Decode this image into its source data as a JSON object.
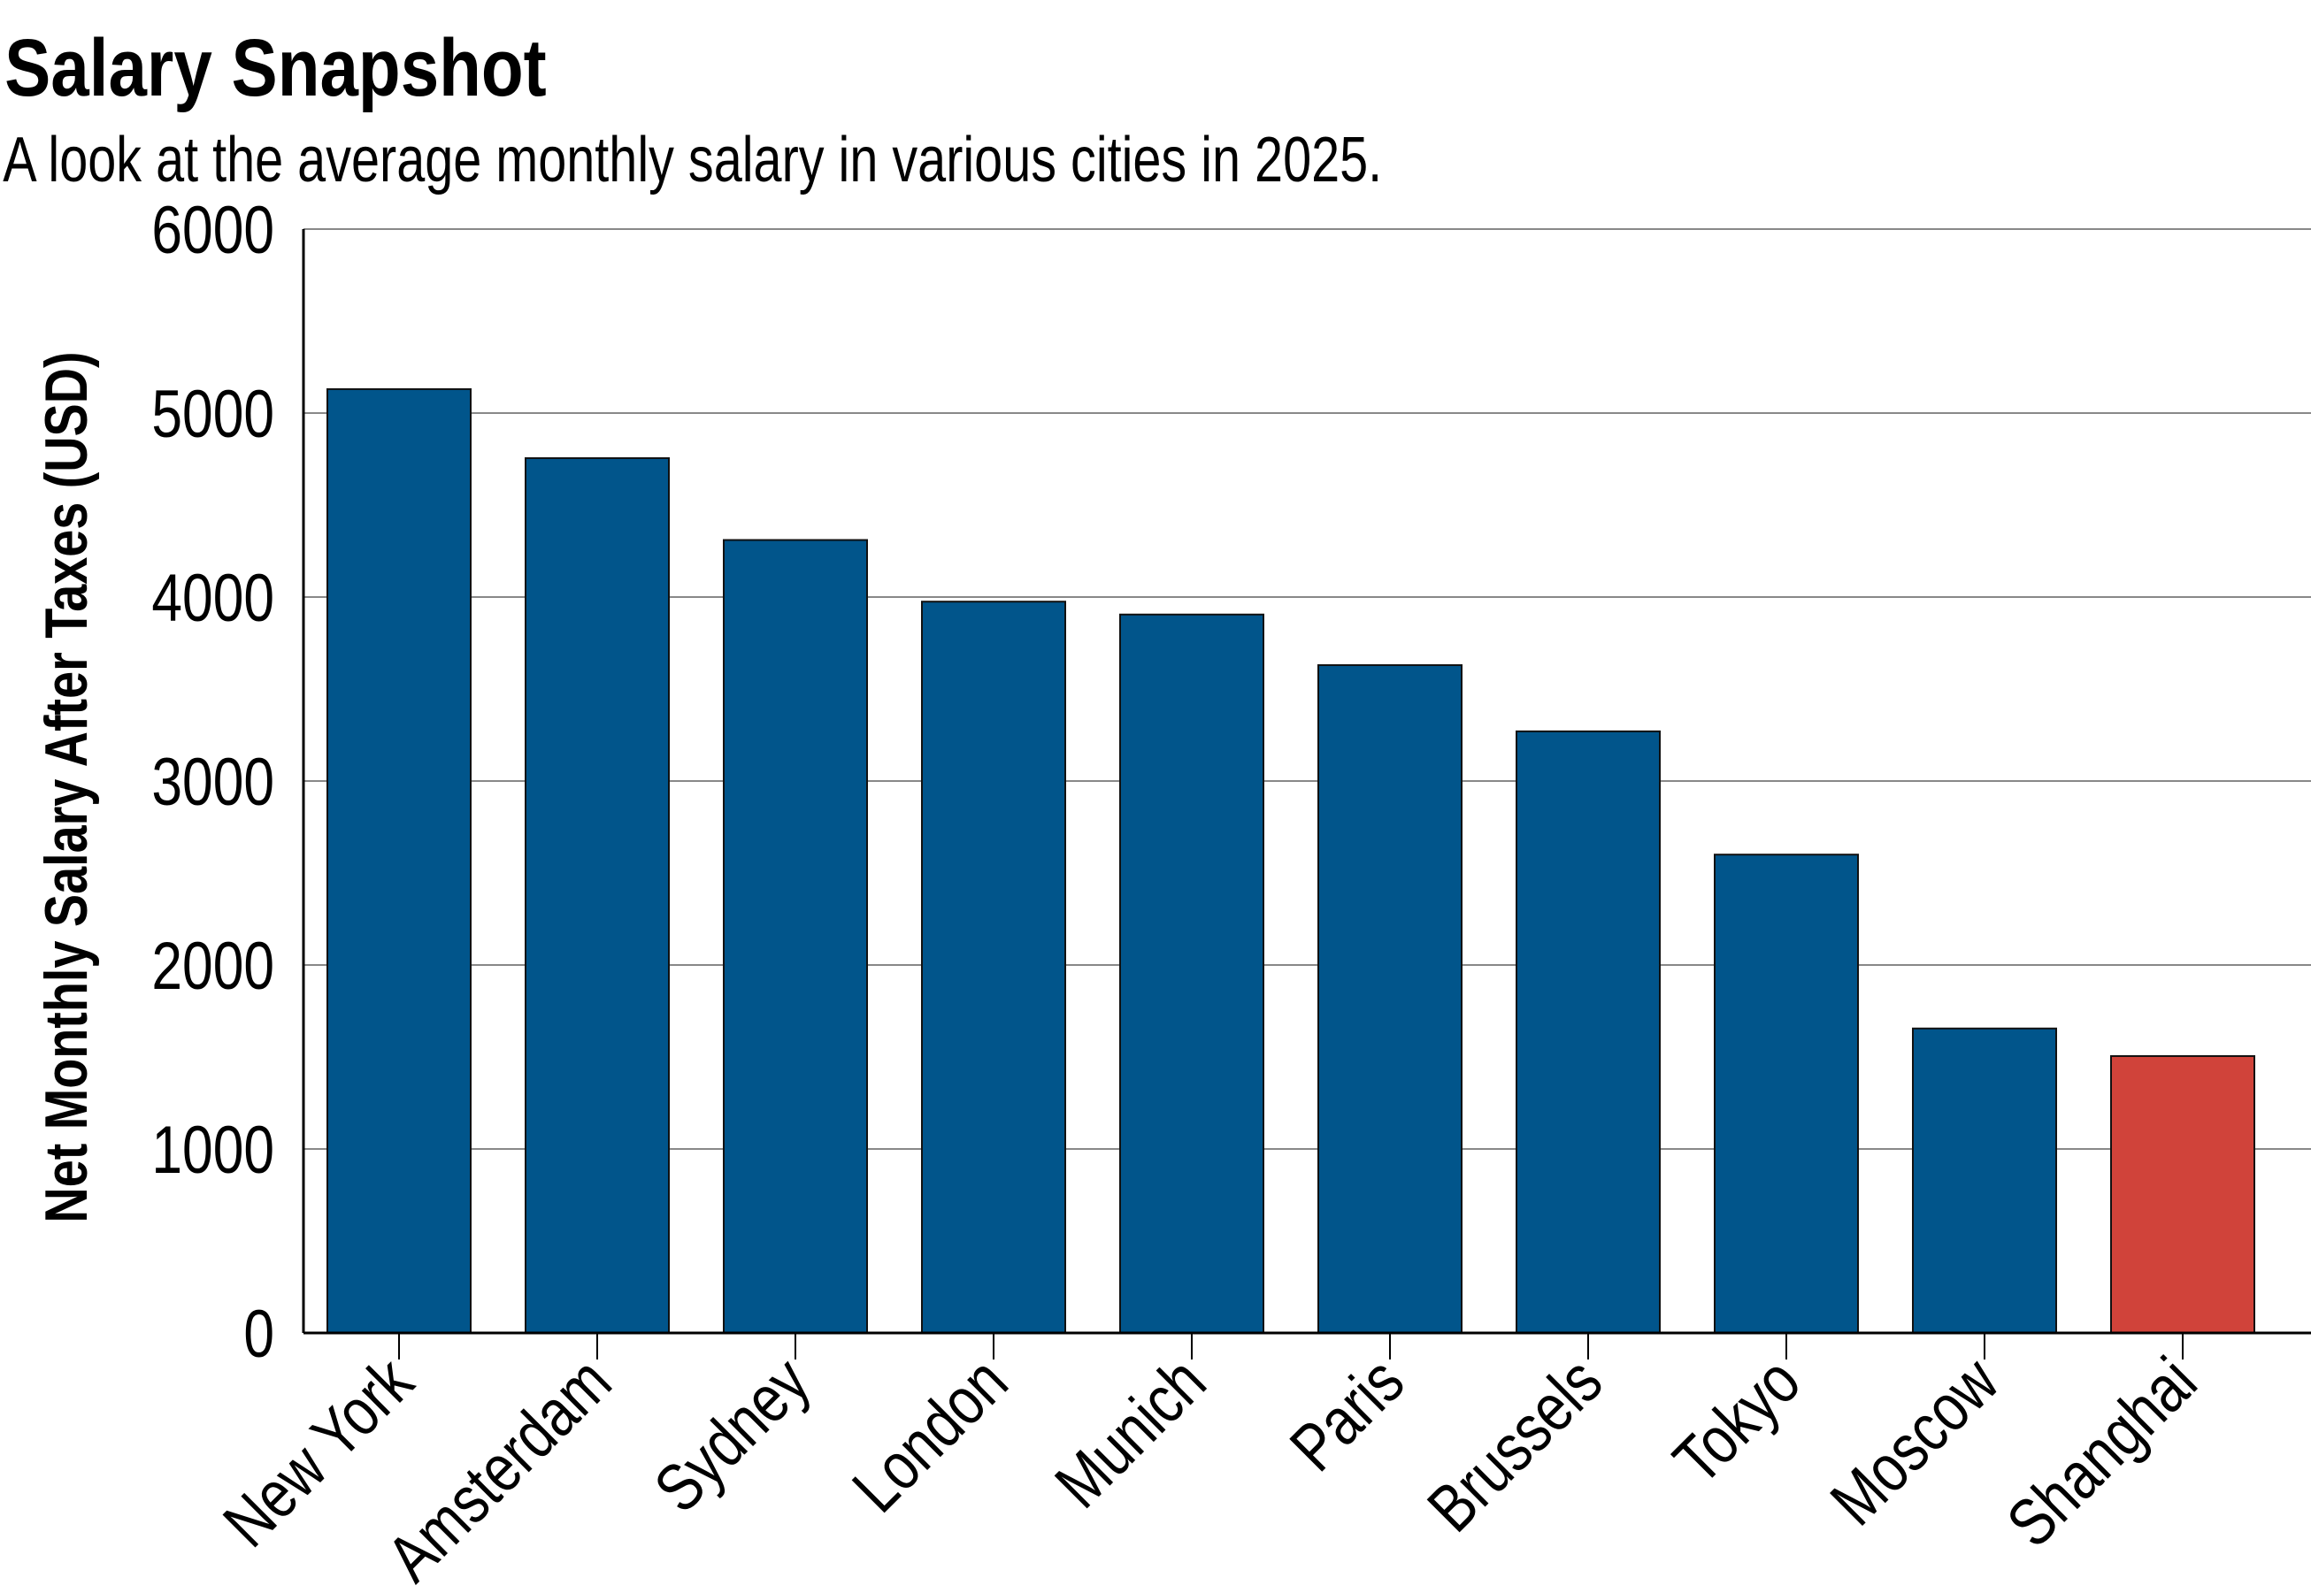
{
  "chart_data": {
    "type": "bar",
    "title": "Salary Snapshot",
    "subtitle": "A look at the average monthly salary in various cities in 2025.",
    "xlabel": "",
    "ylabel": "Net Monthly Salary After Taxes (USD)",
    "ylim": [
      0,
      6000
    ],
    "yticks": [
      0,
      1000,
      2000,
      3000,
      4000,
      5000,
      6000
    ],
    "grid": true,
    "categories": [
      "New York",
      "Amsterdam",
      "Sydney",
      "London",
      "Munich",
      "Paris",
      "Brussels",
      "Tokyo",
      "Moscow",
      "Shanghai"
    ],
    "values": [
      5130,
      4755,
      4310,
      3975,
      3905,
      3630,
      3270,
      2600,
      1655,
      1505
    ],
    "colors": [
      "#01558b",
      "#01558b",
      "#01558b",
      "#01558b",
      "#01558b",
      "#01558b",
      "#01558b",
      "#01558b",
      "#01558b",
      "#d0433a"
    ]
  }
}
